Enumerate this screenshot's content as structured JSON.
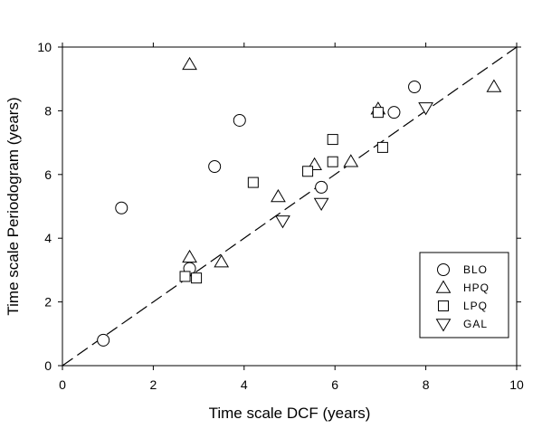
{
  "chart_data": {
    "type": "scatter",
    "title": "",
    "xlabel": "Time scale DCF (years)",
    "ylabel": "Time scale Periodogram (years)",
    "xlim": [
      0,
      10
    ],
    "ylim": [
      0,
      10
    ],
    "xticks": [
      0,
      2,
      4,
      6,
      8,
      10
    ],
    "yticks": [
      0,
      2,
      4,
      6,
      8,
      10
    ],
    "grid": false,
    "legend_position": "bottom-right",
    "reference_line": {
      "style": "dashed",
      "from": [
        0,
        0
      ],
      "to": [
        10,
        10
      ]
    },
    "series": [
      {
        "name": "BLO",
        "marker": "circle",
        "points": [
          [
            0.9,
            0.8
          ],
          [
            1.3,
            4.95
          ],
          [
            2.8,
            3.05
          ],
          [
            3.35,
            6.25
          ],
          [
            3.9,
            7.7
          ],
          [
            5.7,
            5.6
          ],
          [
            7.3,
            7.95
          ],
          [
            7.75,
            8.75
          ]
        ]
      },
      {
        "name": "HPQ",
        "marker": "triangle-up",
        "points": [
          [
            2.8,
            9.45
          ],
          [
            2.8,
            3.4
          ],
          [
            3.5,
            3.25
          ],
          [
            4.75,
            5.3
          ],
          [
            5.55,
            6.3
          ],
          [
            6.35,
            6.4
          ],
          [
            6.95,
            8.05
          ],
          [
            9.5,
            8.75
          ]
        ]
      },
      {
        "name": "LPQ",
        "marker": "square",
        "points": [
          [
            2.7,
            2.8
          ],
          [
            2.95,
            2.75
          ],
          [
            4.2,
            5.75
          ],
          [
            5.4,
            6.1
          ],
          [
            5.95,
            7.1
          ],
          [
            5.95,
            6.4
          ],
          [
            6.95,
            7.95
          ],
          [
            7.05,
            6.85
          ]
        ]
      },
      {
        "name": "GAL",
        "marker": "triangle-down",
        "points": [
          [
            4.85,
            4.55
          ],
          [
            5.7,
            5.1
          ],
          [
            8.0,
            8.1
          ]
        ]
      }
    ]
  }
}
